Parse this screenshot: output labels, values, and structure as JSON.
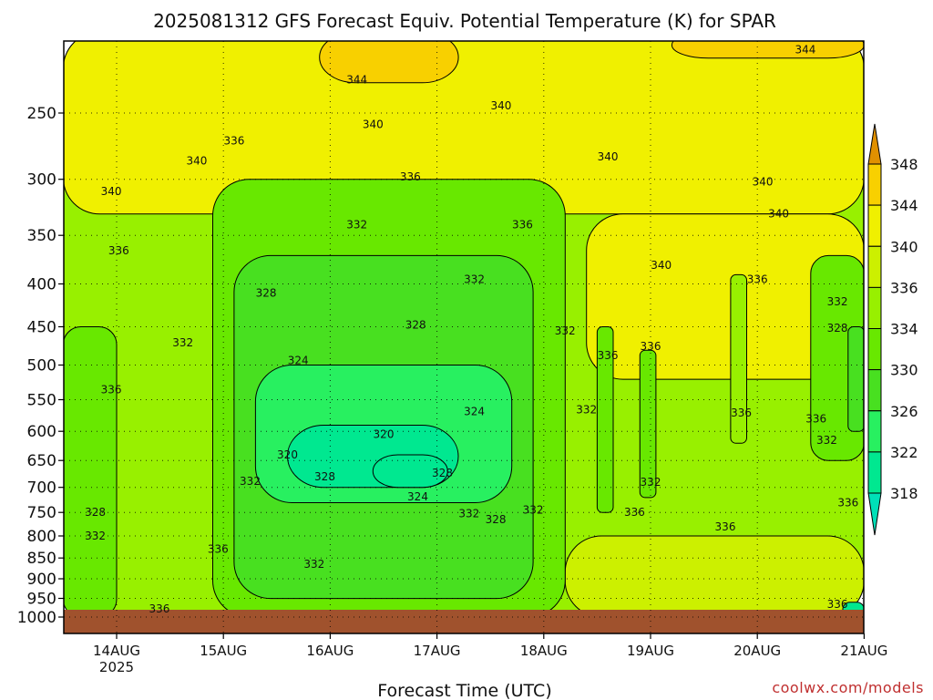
{
  "chart_data": {
    "type": "heatmap",
    "title": "2025081312 GFS Forecast Equiv. Potential Temperature (K) for SPAR",
    "xlabel": "Forecast Time (UTC)",
    "ylabel": "",
    "credit": "coolwx.com/models",
    "y_scale": "log",
    "ylim": [
      1000,
      200
    ],
    "yticks": [
      250,
      300,
      350,
      400,
      450,
      500,
      550,
      600,
      650,
      700,
      750,
      800,
      850,
      900,
      950,
      1000
    ],
    "x_ticks": [
      {
        "label": "14AUG",
        "sublabel": "2025",
        "day": 14
      },
      {
        "label": "15AUG",
        "sublabel": "",
        "day": 15
      },
      {
        "label": "16AUG",
        "sublabel": "",
        "day": 16
      },
      {
        "label": "17AUG",
        "sublabel": "",
        "day": 17
      },
      {
        "label": "18AUG",
        "sublabel": "",
        "day": 18
      },
      {
        "label": "19AUG",
        "sublabel": "",
        "day": 19
      },
      {
        "label": "20AUG",
        "sublabel": "",
        "day": 20
      },
      {
        "label": "21AUG",
        "sublabel": "",
        "day": 21
      }
    ],
    "xlim_days": [
      13.5,
      21.0
    ],
    "colorbar": {
      "levels": [
        318,
        322,
        326,
        330,
        334,
        336,
        340,
        344,
        348
      ],
      "colors": [
        "#00e890",
        "#28f060",
        "#48e020",
        "#68e800",
        "#98f000",
        "#ccf000",
        "#f0f000",
        "#f8d000",
        "#f0a000"
      ],
      "under_color": "#00e0b8",
      "over_color": "#e09000"
    },
    "colors": {
      "ground": "#a0522d",
      "contour": "#000000",
      "grid": "#000000"
    },
    "regions": [
      {
        "value": 335,
        "t": [
          13.5,
          21.0
        ],
        "p": [
          1000,
          200
        ]
      },
      {
        "value": 342,
        "t": [
          13.5,
          21.0
        ],
        "p": [
          330,
          200
        ]
      },
      {
        "value": 342,
        "t": [
          18.4,
          21.0
        ],
        "p": [
          520,
          330
        ]
      },
      {
        "value": 338,
        "t": [
          18.2,
          21.0
        ],
        "p": [
          1000,
          800
        ]
      },
      {
        "value": 332,
        "t": [
          13.5,
          14.0
        ],
        "p": [
          1000,
          450
        ]
      },
      {
        "value": 332,
        "t": [
          14.9,
          18.2
        ],
        "p": [
          1000,
          300
        ]
      },
      {
        "value": 328,
        "t": [
          15.1,
          17.9
        ],
        "p": [
          950,
          370
        ]
      },
      {
        "value": 324,
        "t": [
          15.3,
          17.7
        ],
        "p": [
          730,
          500
        ]
      },
      {
        "value": 320,
        "t": [
          15.6,
          17.2
        ],
        "p": [
          700,
          590
        ]
      },
      {
        "value": 318,
        "t": [
          16.4,
          17.1
        ],
        "p": [
          700,
          640
        ]
      },
      {
        "value": 346,
        "t": [
          15.9,
          17.2
        ],
        "p": [
          230,
          200
        ]
      },
      {
        "value": 346,
        "t": [
          19.2,
          21.0
        ],
        "p": [
          215,
          200
        ]
      },
      {
        "value": 330,
        "t": [
          20.5,
          21.0
        ],
        "p": [
          650,
          370
        ]
      },
      {
        "value": 326,
        "t": [
          20.85,
          21.0
        ],
        "p": [
          600,
          450
        ]
      },
      {
        "value": 332,
        "t": [
          18.5,
          18.65
        ],
        "p": [
          750,
          450
        ]
      },
      {
        "value": 332,
        "t": [
          18.9,
          19.05
        ],
        "p": [
          720,
          480
        ]
      },
      {
        "value": 334,
        "t": [
          19.75,
          19.9
        ],
        "p": [
          620,
          390
        ]
      },
      {
        "value": 318,
        "t": [
          20.8,
          21.0
        ],
        "p": [
          1000,
          960
        ]
      }
    ],
    "annotations": [
      {
        "text": "344",
        "t": 16.25,
        "p": 228
      },
      {
        "text": "344",
        "t": 20.45,
        "p": 210
      },
      {
        "text": "340",
        "t": 16.4,
        "p": 258
      },
      {
        "text": "340",
        "t": 17.6,
        "p": 245
      },
      {
        "text": "340",
        "t": 14.75,
        "p": 285
      },
      {
        "text": "340",
        "t": 18.6,
        "p": 282
      },
      {
        "text": "340",
        "t": 13.95,
        "p": 310
      },
      {
        "text": "340",
        "t": 20.05,
        "p": 302
      },
      {
        "text": "340",
        "t": 20.2,
        "p": 330
      },
      {
        "text": "340",
        "t": 19.1,
        "p": 380
      },
      {
        "text": "336",
        "t": 15.1,
        "p": 270
      },
      {
        "text": "336",
        "t": 16.75,
        "p": 298
      },
      {
        "text": "336",
        "t": 17.8,
        "p": 340
      },
      {
        "text": "336",
        "t": 14.02,
        "p": 365
      },
      {
        "text": "336",
        "t": 20.0,
        "p": 395
      },
      {
        "text": "336",
        "t": 18.6,
        "p": 487
      },
      {
        "text": "336",
        "t": 19.0,
        "p": 475
      },
      {
        "text": "336",
        "t": 13.95,
        "p": 535
      },
      {
        "text": "336",
        "t": 19.85,
        "p": 570
      },
      {
        "text": "336",
        "t": 20.55,
        "p": 580
      },
      {
        "text": "336",
        "t": 18.85,
        "p": 750
      },
      {
        "text": "336",
        "t": 19.7,
        "p": 780
      },
      {
        "text": "336",
        "t": 14.95,
        "p": 830
      },
      {
        "text": "336",
        "t": 14.4,
        "p": 978
      },
      {
        "text": "336",
        "t": 20.75,
        "p": 965
      },
      {
        "text": "336",
        "t": 20.85,
        "p": 730
      },
      {
        "text": "332",
        "t": 16.25,
        "p": 340
      },
      {
        "text": "332",
        "t": 17.35,
        "p": 395
      },
      {
        "text": "332",
        "t": 18.2,
        "p": 455
      },
      {
        "text": "332",
        "t": 14.62,
        "p": 470
      },
      {
        "text": "332",
        "t": 20.75,
        "p": 420
      },
      {
        "text": "332",
        "t": 18.4,
        "p": 565
      },
      {
        "text": "332",
        "t": 20.65,
        "p": 615
      },
      {
        "text": "332",
        "t": 15.25,
        "p": 688
      },
      {
        "text": "332",
        "t": 19.0,
        "p": 690
      },
      {
        "text": "332",
        "t": 17.3,
        "p": 752
      },
      {
        "text": "332",
        "t": 17.9,
        "p": 745
      },
      {
        "text": "332",
        "t": 13.8,
        "p": 800
      },
      {
        "text": "332",
        "t": 15.85,
        "p": 865
      },
      {
        "text": "328",
        "t": 15.4,
        "p": 410
      },
      {
        "text": "328",
        "t": 16.8,
        "p": 448
      },
      {
        "text": "328",
        "t": 20.75,
        "p": 452
      },
      {
        "text": "328",
        "t": 15.95,
        "p": 680
      },
      {
        "text": "328",
        "t": 17.05,
        "p": 673
      },
      {
        "text": "328",
        "t": 17.55,
        "p": 765
      },
      {
        "text": "328",
        "t": 13.8,
        "p": 750
      },
      {
        "text": "324",
        "t": 15.7,
        "p": 494
      },
      {
        "text": "324",
        "t": 17.35,
        "p": 568
      },
      {
        "text": "324",
        "t": 16.82,
        "p": 718
      },
      {
        "text": "320",
        "t": 16.5,
        "p": 605
      },
      {
        "text": "320",
        "t": 15.6,
        "p": 640
      }
    ]
  }
}
